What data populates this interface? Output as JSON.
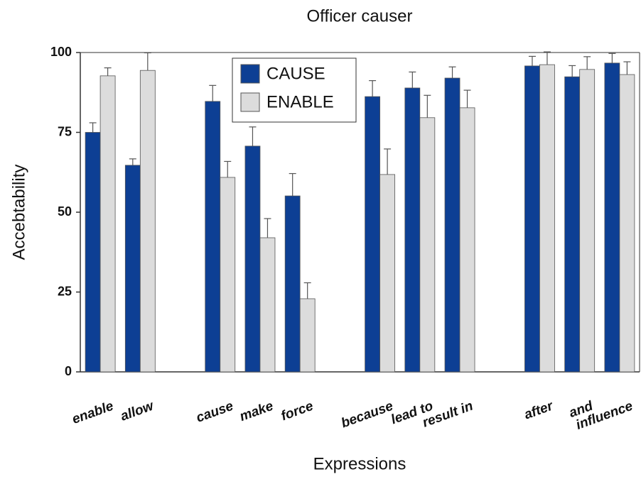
{
  "chart_data": {
    "type": "bar",
    "title": "Officer causer",
    "x_label": "Expressions",
    "y_label": "Accebtability",
    "categories": [
      "enable",
      "allow",
      null,
      "cause",
      "make",
      "force",
      null,
      "because",
      "lead to",
      "result in",
      null,
      "after",
      "and",
      "influence"
    ],
    "series": [
      {
        "name": "CAUSE",
        "color": "#0d3f94",
        "values": [
          75,
          64.7,
          null,
          84.7,
          70.7,
          55.1,
          null,
          86.2,
          88.9,
          92,
          null,
          95.8,
          92.4,
          96.7
        ],
        "errors": [
          3,
          2,
          null,
          5,
          6,
          7,
          null,
          5,
          5,
          3.5,
          null,
          3,
          3.5,
          3
        ]
      },
      {
        "name": "ENABLE",
        "color": "#dcdcdc",
        "values": [
          92.7,
          94.4,
          null,
          60.9,
          42,
          22.9,
          null,
          61.8,
          79.6,
          82.7,
          null,
          96.2,
          94.7,
          93.1
        ],
        "errors": [
          2.5,
          5.5,
          null,
          5,
          6,
          5,
          null,
          8,
          7,
          5.5,
          null,
          4,
          4,
          4
        ]
      }
    ],
    "ylim": [
      0,
      100
    ],
    "yticks": [
      0,
      25,
      50,
      75,
      100
    ],
    "grid": false,
    "legend": "top"
  }
}
